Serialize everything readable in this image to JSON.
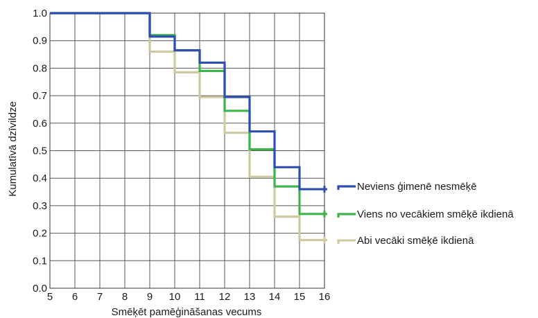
{
  "chart_data": {
    "type": "line",
    "step": true,
    "xlabel": "Smēķēt pamēģināšanas vecums",
    "ylabel": "Kumulatīvā dzīvildze",
    "xlim": [
      5,
      16
    ],
    "ylim": [
      0,
      1
    ],
    "x_ticks": [
      "5",
      "6",
      "7",
      "8",
      "9",
      "10",
      "11",
      "12",
      "13",
      "14",
      "15",
      "16"
    ],
    "y_ticks": [
      "0.0",
      "0.1",
      "0.2",
      "0.3",
      "0.4",
      "0.5",
      "0.6",
      "0.7",
      "0.8",
      "0.9",
      "1.0"
    ],
    "grid": true,
    "legend_position": "right",
    "series": [
      {
        "name": "Neviens ģimenē nesmēķē",
        "color": "#2f4fb0",
        "x": [
          5,
          9,
          10,
          11,
          12,
          13,
          14,
          15,
          16
        ],
        "y": [
          1.0,
          0.915,
          0.865,
          0.82,
          0.695,
          0.57,
          0.44,
          0.36,
          0.36
        ]
      },
      {
        "name": "Viens no vecākiem smēķē ikdienā",
        "color": "#3cb54a",
        "x": [
          5,
          9,
          10,
          11,
          12,
          13,
          14,
          15,
          16
        ],
        "y": [
          1.0,
          0.92,
          0.865,
          0.79,
          0.645,
          0.505,
          0.37,
          0.27,
          0.27
        ]
      },
      {
        "name": "Abi vecāki smēķē ikdienā",
        "color": "#cfc9a0",
        "x": [
          5,
          9,
          10,
          11,
          12,
          13,
          14,
          15,
          16
        ],
        "y": [
          1.0,
          0.86,
          0.785,
          0.695,
          0.565,
          0.405,
          0.26,
          0.175,
          0.175
        ]
      }
    ]
  }
}
